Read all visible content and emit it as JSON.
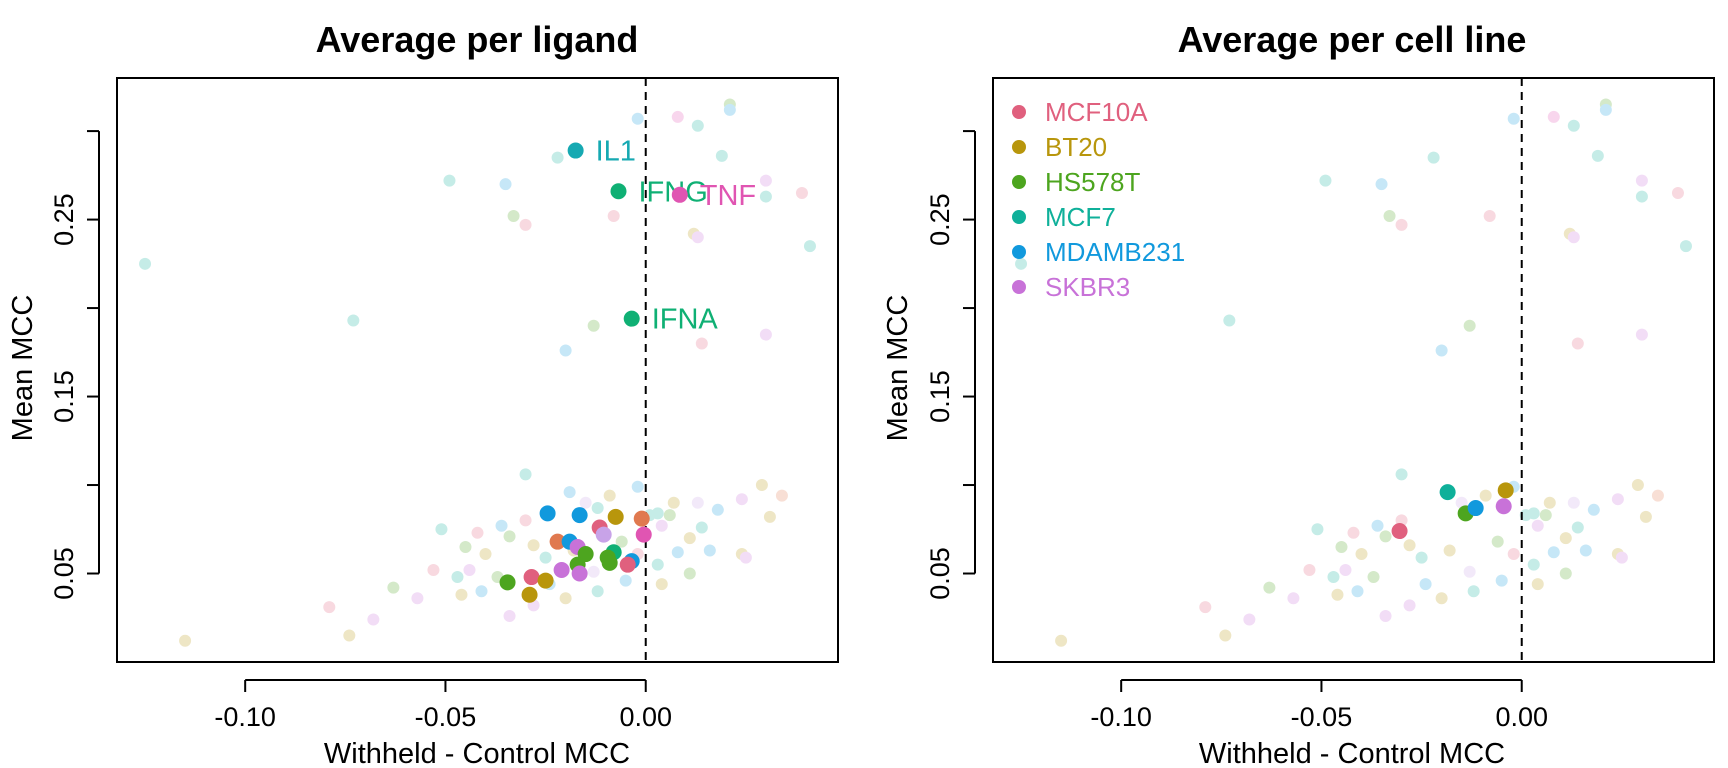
{
  "colors": {
    "MCF10A": "#e0607e",
    "BT20": "#b8960c",
    "HS578T": "#4da51f",
    "MCF7": "#0fb09a",
    "MDAMB231": "#1199dd",
    "SKBR3": "#c872d8",
    "IL1": "#16a9b2",
    "IFNG": "#0fb074",
    "IFNA": "#0fb074",
    "TNF": "#e055b2",
    "ligA": "#e0794f",
    "ligB": "#c8a3e8"
  },
  "chart_data": [
    {
      "type": "scatter",
      "title": "Average per ligand",
      "xlabel": "Withheld - Control MCC",
      "ylabel": "Mean MCC",
      "xlim": [
        -0.132,
        0.048
      ],
      "ylim": [
        0.0,
        0.33
      ],
      "xticks": [
        -0.1,
        -0.05,
        0.0
      ],
      "xtick_labels": [
        "-0.10",
        "-0.05",
        "0.00"
      ],
      "yticks": [
        0.05,
        0.1,
        0.15,
        0.2,
        0.25,
        0.3
      ],
      "ytick_labels": [
        "0.05",
        "",
        "0.15",
        "",
        "0.25",
        ""
      ],
      "reference_line_x": 0.0,
      "labeled_points": [
        {
          "label": "IL1",
          "x": -0.0175,
          "y": 0.289,
          "color_key": "IL1"
        },
        {
          "label": "IFNG",
          "x": -0.0068,
          "y": 0.266,
          "color_key": "IFNG"
        },
        {
          "label": "TNF",
          "x": 0.0085,
          "y": 0.264,
          "color_key": "TNF"
        },
        {
          "label": "IFNA",
          "x": -0.0035,
          "y": 0.194,
          "color_key": "IFNA"
        }
      ],
      "highlight_points": [
        {
          "x": -0.0245,
          "y": 0.084,
          "color_key": "MDAMB231"
        },
        {
          "x": -0.0165,
          "y": 0.083,
          "color_key": "MDAMB231"
        },
        {
          "x": -0.0075,
          "y": 0.082,
          "color_key": "BT20"
        },
        {
          "x": -0.001,
          "y": 0.081,
          "color_key": "ligA"
        },
        {
          "x": -0.0115,
          "y": 0.076,
          "color_key": "MCF10A"
        },
        {
          "x": -0.0005,
          "y": 0.072,
          "color_key": "TNF"
        },
        {
          "x": -0.0105,
          "y": 0.072,
          "color_key": "ligB"
        },
        {
          "x": -0.022,
          "y": 0.068,
          "color_key": "ligA"
        },
        {
          "x": -0.019,
          "y": 0.068,
          "color_key": "MDAMB231"
        },
        {
          "x": -0.017,
          "y": 0.065,
          "color_key": "SKBR3"
        },
        {
          "x": -0.015,
          "y": 0.061,
          "color_key": "HS578T"
        },
        {
          "x": -0.008,
          "y": 0.062,
          "color_key": "IFNG"
        },
        {
          "x": -0.0095,
          "y": 0.059,
          "color_key": "HS578T"
        },
        {
          "x": -0.0035,
          "y": 0.057,
          "color_key": "MDAMB231"
        },
        {
          "x": -0.0045,
          "y": 0.055,
          "color_key": "MCF10A"
        },
        {
          "x": -0.009,
          "y": 0.056,
          "color_key": "HS578T"
        },
        {
          "x": -0.017,
          "y": 0.055,
          "color_key": "HS578T"
        },
        {
          "x": -0.0165,
          "y": 0.05,
          "color_key": "SKBR3"
        },
        {
          "x": -0.021,
          "y": 0.052,
          "color_key": "SKBR3"
        },
        {
          "x": -0.0285,
          "y": 0.048,
          "color_key": "MCF10A"
        },
        {
          "x": -0.025,
          "y": 0.046,
          "color_key": "BT20"
        },
        {
          "x": -0.0345,
          "y": 0.045,
          "color_key": "HS578T"
        },
        {
          "x": -0.029,
          "y": 0.038,
          "color_key": "BT20"
        }
      ]
    },
    {
      "type": "scatter",
      "title": "Average per cell line",
      "xlabel": "Withheld - Control MCC",
      "ylabel": "Mean MCC",
      "xlim": [
        -0.132,
        0.048
      ],
      "ylim": [
        0.0,
        0.33
      ],
      "xticks": [
        -0.1,
        -0.05,
        0.0
      ],
      "xtick_labels": [
        "-0.10",
        "-0.05",
        "0.00"
      ],
      "yticks": [
        0.05,
        0.1,
        0.15,
        0.2,
        0.25,
        0.3
      ],
      "ytick_labels": [
        "0.05",
        "",
        "0.15",
        "",
        "0.25",
        ""
      ],
      "reference_line_x": 0.0,
      "legend_position": "top-left",
      "series": [
        {
          "name": "MCF10A",
          "color_key": "MCF10A",
          "x": -0.0305,
          "y": 0.074
        },
        {
          "name": "BT20",
          "color_key": "BT20",
          "x": -0.004,
          "y": 0.097
        },
        {
          "name": "HS578T",
          "color_key": "HS578T",
          "x": -0.014,
          "y": 0.084
        },
        {
          "name": "MCF7",
          "color_key": "MCF7",
          "x": -0.0185,
          "y": 0.096
        },
        {
          "name": "MDAMB231",
          "color_key": "MDAMB231",
          "x": -0.0115,
          "y": 0.087
        },
        {
          "name": "SKBR3",
          "color_key": "SKBR3",
          "x": -0.0045,
          "y": 0.088
        }
      ]
    }
  ],
  "background_points": [
    [
      -0.125,
      0.225,
      "MCF7"
    ],
    [
      -0.073,
      0.193,
      "MCF7"
    ],
    [
      -0.115,
      0.012,
      "BT20"
    ],
    [
      -0.049,
      0.272,
      "MCF7"
    ],
    [
      -0.035,
      0.27,
      "MDAMB231"
    ],
    [
      -0.033,
      0.252,
      "HS578T"
    ],
    [
      -0.03,
      0.247,
      "MCF10A"
    ],
    [
      -0.022,
      0.285,
      "MCF7"
    ],
    [
      -0.008,
      0.252,
      "MCF10A"
    ],
    [
      -0.002,
      0.307,
      "MDAMB231"
    ],
    [
      0.008,
      0.308,
      "TNF"
    ],
    [
      0.013,
      0.303,
      "MCF7"
    ],
    [
      0.021,
      0.315,
      "HS578T"
    ],
    [
      0.021,
      0.312,
      "MDAMB231"
    ],
    [
      0.019,
      0.286,
      "MCF7"
    ],
    [
      0.03,
      0.272,
      "SKBR3"
    ],
    [
      0.03,
      0.263,
      "MCF7"
    ],
    [
      0.039,
      0.265,
      "MCF10A"
    ],
    [
      0.012,
      0.242,
      "BT20"
    ],
    [
      0.013,
      0.24,
      "SKBR3"
    ],
    [
      0.041,
      0.235,
      "MCF7"
    ],
    [
      -0.013,
      0.19,
      "HS578T"
    ],
    [
      -0.02,
      0.176,
      "MDAMB231"
    ],
    [
      0.014,
      0.18,
      "MCF10A"
    ],
    [
      0.03,
      0.185,
      "SKBR3"
    ],
    [
      -0.03,
      0.106,
      "MCF7"
    ],
    [
      -0.019,
      0.096,
      "MDAMB231"
    ],
    [
      -0.002,
      0.099,
      "MDAMB231"
    ],
    [
      -0.036,
      0.077,
      "MDAMB231"
    ],
    [
      -0.042,
      0.073,
      "MCF10A"
    ],
    [
      -0.051,
      0.075,
      "MCF7"
    ],
    [
      -0.045,
      0.065,
      "HS578T"
    ],
    [
      -0.04,
      0.061,
      "BT20"
    ],
    [
      -0.047,
      0.048,
      "MCF7"
    ],
    [
      -0.044,
      0.052,
      "SKBR3"
    ],
    [
      -0.053,
      0.052,
      "MCF10A"
    ],
    [
      -0.063,
      0.042,
      "HS578T"
    ],
    [
      -0.057,
      0.036,
      "SKBR3"
    ],
    [
      -0.046,
      0.038,
      "BT20"
    ],
    [
      -0.041,
      0.04,
      "MDAMB231"
    ],
    [
      -0.034,
      0.026,
      "SKBR3"
    ],
    [
      -0.028,
      0.032,
      "SKBR3"
    ],
    [
      -0.02,
      0.036,
      "BT20"
    ],
    [
      -0.012,
      0.04,
      "MCF7"
    ],
    [
      -0.005,
      0.046,
      "MDAMB231"
    ],
    [
      0.004,
      0.044,
      "BT20"
    ],
    [
      0.011,
      0.05,
      "HS578T"
    ],
    [
      0.008,
      0.062,
      "MDAMB231"
    ],
    [
      0.016,
      0.063,
      "MDAMB231"
    ],
    [
      0.011,
      0.07,
      "BT20"
    ],
    [
      0.014,
      0.076,
      "MCF7"
    ],
    [
      0.006,
      0.083,
      "HS578T"
    ],
    [
      0.007,
      0.09,
      "BT20"
    ],
    [
      0.018,
      0.086,
      "MDAMB231"
    ],
    [
      0.024,
      0.061,
      "BT20"
    ],
    [
      0.025,
      0.059,
      "SKBR3"
    ],
    [
      0.024,
      0.092,
      "SKBR3"
    ],
    [
      0.029,
      0.1,
      "BT20"
    ],
    [
      0.031,
      0.082,
      "BT20"
    ],
    [
      0.034,
      0.094,
      "ligA"
    ],
    [
      0.003,
      0.084,
      "MCF7"
    ],
    [
      0.013,
      0.09,
      "ligB"
    ],
    [
      -0.079,
      0.031,
      "MCF10A"
    ],
    [
      -0.074,
      0.015,
      "BT20"
    ],
    [
      -0.068,
      0.024,
      "SKBR3"
    ],
    [
      -0.025,
      0.059,
      "MCF7"
    ],
    [
      -0.03,
      0.08,
      "MCF10A"
    ],
    [
      -0.034,
      0.071,
      "HS578T"
    ],
    [
      -0.028,
      0.066,
      "BT20"
    ],
    [
      -0.015,
      0.09,
      "ligB"
    ],
    [
      -0.012,
      0.087,
      "MCF7"
    ],
    [
      -0.009,
      0.094,
      "BT20"
    ],
    [
      0.001,
      0.083,
      "MCF7"
    ],
    [
      0.004,
      0.077,
      "SKBR3"
    ],
    [
      -0.006,
      0.068,
      "HS578T"
    ],
    [
      -0.024,
      0.044,
      "MDAMB231"
    ],
    [
      -0.037,
      0.048,
      "HS578T"
    ],
    [
      -0.013,
      0.051,
      "ligB"
    ],
    [
      -0.002,
      0.061,
      "MCF10A"
    ],
    [
      0.003,
      0.055,
      "MCF7"
    ],
    [
      -0.018,
      0.063,
      "BT20"
    ]
  ]
}
